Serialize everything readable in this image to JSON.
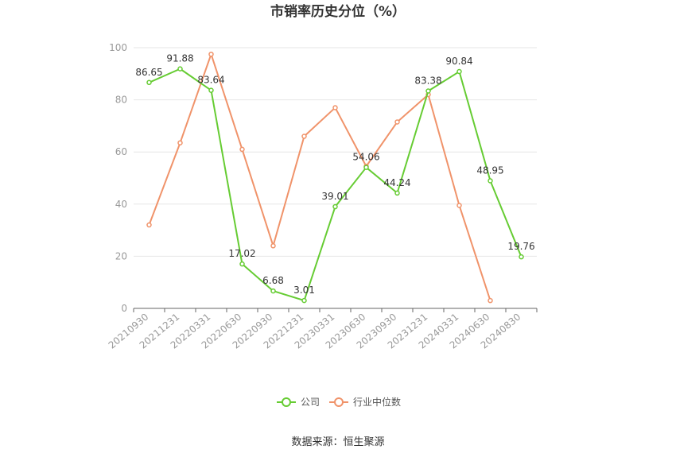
{
  "chart_data": {
    "type": "line",
    "title": "市销率历史分位（%）",
    "source": "数据来源：恒生聚源",
    "categories": [
      "20210930",
      "20211231",
      "20220331",
      "20220630",
      "20220930",
      "20221231",
      "20230331",
      "20230630",
      "20230930",
      "20231231",
      "20240331",
      "20240630",
      "20240830"
    ],
    "ylim": [
      0,
      100
    ],
    "yticks": [
      0,
      20,
      40,
      60,
      80,
      100
    ],
    "grid": true,
    "legend_position": "bottom",
    "series": [
      {
        "name": "公司",
        "color": "#66cc33",
        "values": [
          86.65,
          91.88,
          83.64,
          17.02,
          6.68,
          3.01,
          39.01,
          54.06,
          44.24,
          83.38,
          90.84,
          48.95,
          19.76
        ],
        "labels": [
          "86.65",
          "91.88",
          "83.64",
          "17.02",
          "6.68",
          "3.01",
          "39.01",
          "54.06",
          "44.24",
          "83.38",
          "90.84",
          "48.95",
          "19.76"
        ]
      },
      {
        "name": "行业中位数",
        "color": "#f0936a",
        "values": [
          32,
          63.5,
          97.5,
          61,
          24,
          66,
          77,
          54.5,
          71.5,
          82,
          39.5,
          3,
          null
        ]
      }
    ]
  }
}
